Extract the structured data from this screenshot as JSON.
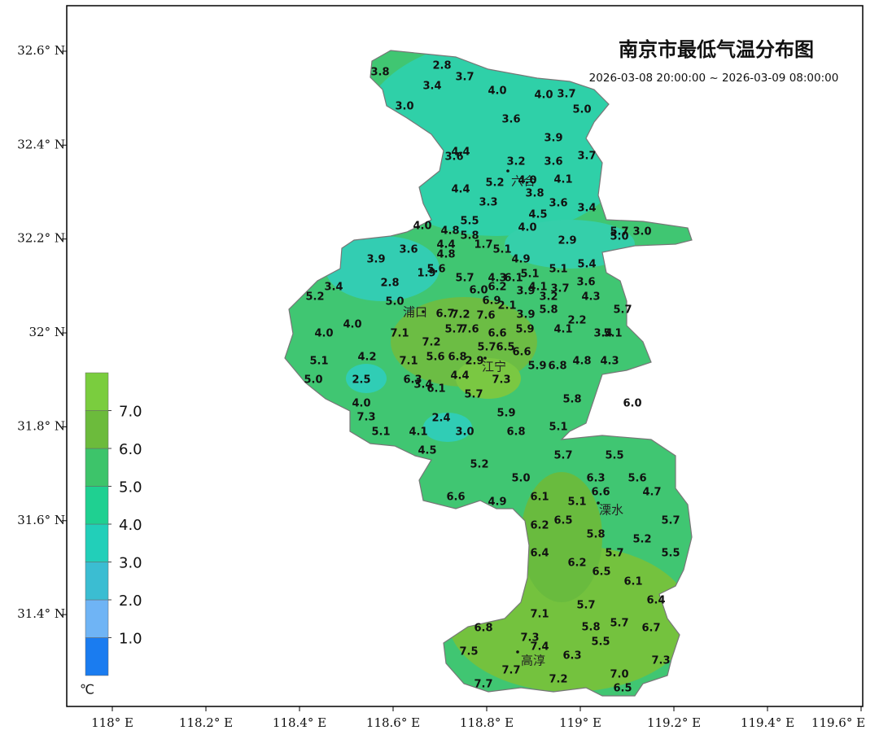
{
  "title": "南京市最低气温分布图",
  "subtitle": "2026-03-08 20:00:00 ~ 2026-03-09 08:00:00",
  "axes": {
    "xlim": [
      117.9,
      119.6
    ],
    "xticks": [
      {
        "value": 118,
        "label": "118° E"
      },
      {
        "value": 118.2,
        "label": "118.2° E"
      },
      {
        "value": 118.4,
        "label": "118.4° E"
      },
      {
        "value": 118.6,
        "label": "118.6° E"
      },
      {
        "value": 118.8,
        "label": "118.8° E"
      },
      {
        "value": 119,
        "label": "119° E"
      },
      {
        "value": 119.2,
        "label": "119.2° E"
      },
      {
        "value": 119.4,
        "label": "119.4° E"
      },
      {
        "value": 119.6,
        "label": "119.6° E"
      }
    ],
    "ylim": [
      31.2,
      32.7
    ],
    "yticks": [
      {
        "value": 31.4,
        "label": "31.4° N"
      },
      {
        "value": 31.6,
        "label": "31.6° N"
      },
      {
        "value": 31.8,
        "label": "31.8° N"
      },
      {
        "value": 32,
        "label": "32° N"
      },
      {
        "value": 32.2,
        "label": "32.2° N"
      },
      {
        "value": 32.4,
        "label": "32.4° N"
      },
      {
        "value": 32.6,
        "label": "32.6° N"
      }
    ]
  },
  "legend": {
    "unit": "℃",
    "ticks": [
      {
        "value": 1,
        "label": "1.0"
      },
      {
        "value": 2,
        "label": "2.0"
      },
      {
        "value": 3,
        "label": "3.0"
      },
      {
        "value": 4,
        "label": "4.0"
      },
      {
        "value": 5,
        "label": "5.0"
      },
      {
        "value": 6,
        "label": "6.0"
      },
      {
        "value": 7,
        "label": "7.0"
      }
    ],
    "colors": [
      "#1a7cf0",
      "#6fb4f5",
      "#3bbdd2",
      "#22cfb9",
      "#1fd091",
      "#3dc46a",
      "#6cbb3c",
      "#7acd3e"
    ]
  },
  "districts": [
    "六合",
    "浦口",
    "江宁",
    "溧水",
    "高淳"
  ],
  "stations": {
    "values": [
      3.8,
      2.8,
      3.4,
      3.7,
      4.0,
      3.0,
      4.0,
      3.7,
      5.0,
      3.6,
      3.9,
      4.4,
      3.6,
      3.2,
      3.6,
      3.7,
      5.2,
      4.0,
      4.1,
      4.4,
      3.8,
      3.3,
      3.6,
      3.4,
      4.5,
      4.0,
      5.5,
      4.8,
      5.8,
      4.0,
      5.7,
      3.0,
      5.0,
      2.9,
      1.7,
      5.1,
      4.4,
      4.8,
      3.6,
      3.9,
      4.9,
      5.4,
      5.6,
      1.9,
      5.1,
      5.1,
      5.7,
      4.3,
      6.1,
      3.6,
      2.8,
      3.4,
      5.2,
      6.0,
      6.2,
      3.9,
      4.1,
      3.7,
      3.2,
      4.3,
      5.0,
      6.7,
      7.2,
      6.9,
      2.1,
      7.6,
      5.7,
      5.8,
      3.9,
      2.2,
      4.0,
      4.0,
      7.1,
      5.7,
      7.6,
      6.6,
      5.9,
      4.1,
      3.4,
      5.1,
      7.2,
      5.7,
      6.5,
      6.6,
      5.1,
      4.2,
      7.1,
      5.6,
      6.8,
      2.9,
      5.9,
      6.8,
      4.8,
      4.3,
      5.0,
      2.5,
      6.3,
      3.4,
      6.1,
      4.4,
      7.3,
      5.7,
      5.8,
      6.0,
      4.0,
      7.3,
      2.4,
      5.9,
      5.1,
      4.1,
      3.0,
      6.8,
      5.1,
      4.5,
      5.7,
      5.5,
      5.2,
      5.0,
      6.3,
      5.6,
      6.6,
      4.9,
      6.1,
      5.1,
      6.6,
      4.7,
      6.5,
      6.2,
      5.7,
      5.8,
      5.2,
      6.4,
      5.7,
      5.5,
      6.2,
      6.5,
      6.1,
      6.4,
      5.7,
      7.1,
      5.8,
      5.7,
      6.7,
      6.8,
      7.3,
      7.4,
      5.5,
      7.5,
      6.3,
      7.3,
      7.7,
      7.0,
      7.2,
      7.7,
      6.5
    ],
    "value_labels": [
      "3.8",
      "2.8",
      "3.4",
      "3.7",
      "4.0",
      "3.0",
      "4.0",
      "3.7",
      "5.0",
      "3.6",
      "3.9",
      "4.4",
      "3.6",
      "3.2",
      "3.6",
      "3.7",
      "5.2",
      "4.0",
      "4.1",
      "4.4",
      "3.8",
      "3.3",
      "3.6",
      "3.4",
      "4.5",
      "4.0",
      "5.5",
      "4.8",
      "5.8",
      "4.0",
      "5.7",
      "3.0",
      "5.0",
      "2.9",
      "1.7",
      "5.1",
      "4.4",
      "4.8",
      "3.6",
      "3.9",
      "4.9",
      "5.4",
      "5.6",
      "1.9",
      "5.1",
      "5.1",
      "5.7",
      "4.3",
      "6.1",
      "3.6",
      "2.8",
      "3.4",
      "5.2",
      "6.0",
      "6.2",
      "3.9",
      "4.1",
      "3.7",
      "3.2",
      "4.3",
      "5.0",
      "6.7",
      "7.2",
      "6.9",
      "2.1",
      "7.6",
      "5.7",
      "5.8",
      "3.9",
      "2.2",
      "4.0",
      "4.0",
      "7.1",
      "5.7",
      "7.6",
      "6.6",
      "5.9",
      "4.1",
      "3.4",
      "5.1",
      "7.2",
      "5.7",
      "6.5",
      "6.6",
      "5.1",
      "4.2",
      "7.1",
      "5.6",
      "6.8",
      "2.9",
      "5.9",
      "6.8",
      "4.8",
      "4.3",
      "5.0",
      "2.5",
      "6.3",
      "3.4",
      "6.1",
      "4.4",
      "7.3",
      "5.7",
      "5.8",
      "6.0",
      "4.0",
      "7.3",
      "2.4",
      "5.9",
      "5.1",
      "4.1",
      "3.0",
      "6.8",
      "5.1",
      "4.5",
      "5.7",
      "5.5",
      "5.2",
      "5.0",
      "6.3",
      "5.6",
      "6.6",
      "4.9",
      "6.1",
      "5.1",
      "6.6",
      "4.7",
      "6.5",
      "6.2",
      "5.7",
      "5.8",
      "5.2",
      "6.4",
      "5.7",
      "5.5",
      "6.2",
      "6.5",
      "6.1",
      "6.4",
      "5.7",
      "7.1",
      "5.8",
      "5.7",
      "6.7",
      "6.8",
      "7.3",
      "7.4",
      "5.5",
      "7.5",
      "6.3",
      "7.3",
      "7.7",
      "7.0",
      "7.2",
      "7.7",
      "6.5"
    ]
  }
}
